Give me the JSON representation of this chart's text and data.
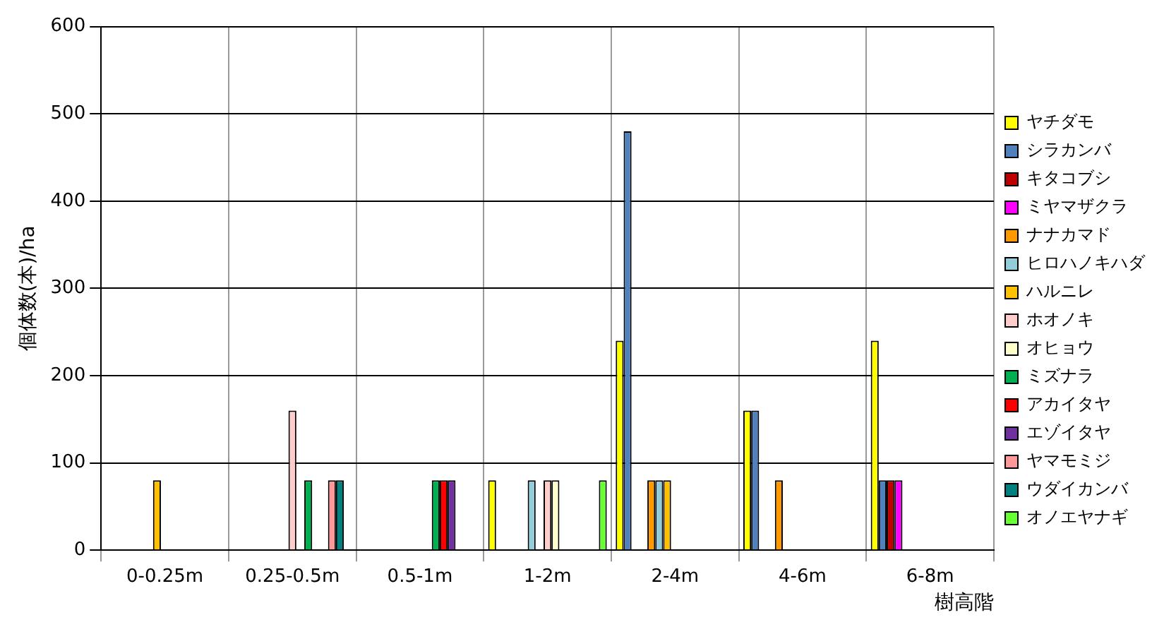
{
  "chart_data": {
    "type": "bar",
    "ylabel": "個体数(本)/ha",
    "xlabel": "樹高階",
    "categories": [
      "0-0.25m",
      "0.25-0.5m",
      "0.5-1m",
      "1-2m",
      "2-4m",
      "4-6m",
      "6-8m"
    ],
    "series": [
      {
        "name": "ヤチダモ",
        "color": "#ffff00",
        "values": [
          null,
          null,
          null,
          80,
          240,
          160,
          240
        ]
      },
      {
        "name": "シラカンバ",
        "color": "#4f81bd",
        "values": [
          null,
          null,
          null,
          null,
          480,
          160,
          80
        ]
      },
      {
        "name": "キタコブシ",
        "color": "#c00000",
        "values": [
          null,
          null,
          null,
          null,
          null,
          null,
          80
        ]
      },
      {
        "name": "ミヤマザクラ",
        "color": "#ff00ff",
        "values": [
          null,
          null,
          null,
          null,
          null,
          null,
          80
        ]
      },
      {
        "name": "ナナカマド",
        "color": "#ff9900",
        "values": [
          null,
          null,
          null,
          null,
          80,
          80,
          null
        ]
      },
      {
        "name": "ヒロハノキハダ",
        "color": "#92cddc",
        "values": [
          null,
          null,
          null,
          80,
          80,
          null,
          null
        ]
      },
      {
        "name": "ハルニレ",
        "color": "#ffc000",
        "values": [
          80,
          null,
          null,
          null,
          80,
          null,
          null
        ]
      },
      {
        "name": "ホオノキ",
        "color": "#ffcccc",
        "values": [
          null,
          160,
          null,
          80,
          null,
          null,
          null
        ]
      },
      {
        "name": "オヒョウ",
        "color": "#ffffcc",
        "values": [
          null,
          null,
          null,
          80,
          null,
          null,
          null
        ]
      },
      {
        "name": "ミズナラ",
        "color": "#00b050",
        "values": [
          null,
          80,
          80,
          null,
          null,
          null,
          null
        ]
      },
      {
        "name": "アカイタヤ",
        "color": "#ff0000",
        "values": [
          null,
          null,
          80,
          null,
          null,
          null,
          null
        ]
      },
      {
        "name": "エゾイタヤ",
        "color": "#7030a0",
        "values": [
          null,
          null,
          80,
          null,
          null,
          null,
          null
        ]
      },
      {
        "name": "ヤマモミジ",
        "color": "#ff9999",
        "values": [
          null,
          80,
          null,
          null,
          null,
          null,
          null
        ]
      },
      {
        "name": "ウダイカンバ",
        "color": "#008080",
        "values": [
          null,
          80,
          null,
          null,
          null,
          null,
          null
        ]
      },
      {
        "name": "オノエヤナギ",
        "color": "#66ff33",
        "values": [
          null,
          null,
          null,
          80,
          null,
          null,
          null
        ]
      }
    ],
    "ylim": [
      0,
      600
    ],
    "yticks": [
      0,
      100,
      200,
      300,
      400,
      500,
      600
    ],
    "grid": true,
    "legend": "right"
  }
}
